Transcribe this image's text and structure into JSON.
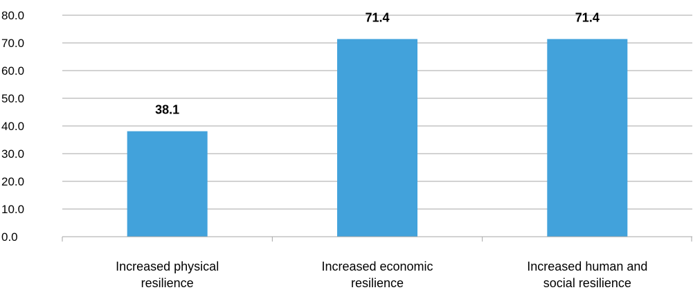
{
  "chart_data": {
    "type": "bar",
    "title": "",
    "xlabel": "",
    "ylabel": "",
    "categories": [
      "Increased physical resilience",
      "Increased economic resilience",
      "Increased human and social resilience"
    ],
    "category_lines": [
      [
        "Increased physical",
        "resilience"
      ],
      [
        "Increased economic",
        "resilience"
      ],
      [
        "Increased human and",
        "social resilience"
      ]
    ],
    "values": [
      38.1,
      71.4,
      71.4
    ],
    "value_labels": [
      "38.1",
      "71.4",
      "71.4"
    ],
    "ylim": [
      0,
      80
    ],
    "y_ticks": [
      0,
      10,
      20,
      30,
      40,
      50,
      60,
      70,
      80
    ],
    "y_tick_labels": [
      "0.0",
      "10.0",
      "20.0",
      "30.0",
      "40.0",
      "50.0",
      "60.0",
      "70.0",
      "80.0"
    ],
    "grid": true,
    "legend": "none",
    "colors": {
      "bar": "#42a2db",
      "grid": "#a6a6a6",
      "axis": "#a6a6a6",
      "text": "#000000"
    }
  }
}
